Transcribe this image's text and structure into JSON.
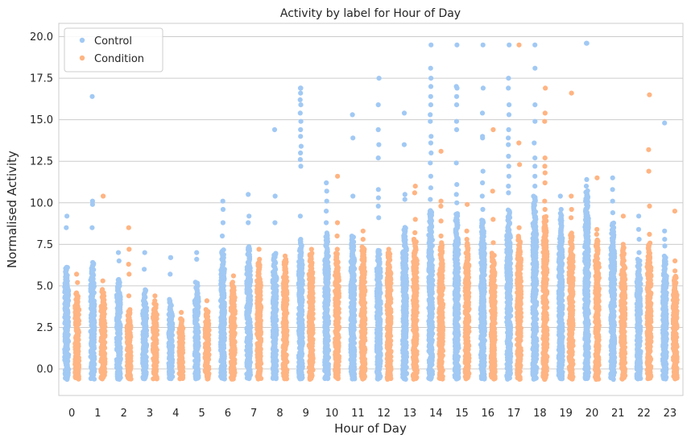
{
  "chart_data": {
    "type": "scatter",
    "subtype": "strip",
    "title": "Activity by label for Hour of Day",
    "xlabel": "Hour of Day",
    "ylabel": "Normalised Activity",
    "categories": [
      "0",
      "1",
      "2",
      "3",
      "4",
      "5",
      "6",
      "7",
      "8",
      "9",
      "10",
      "11",
      "12",
      "13",
      "14",
      "15",
      "16",
      "17",
      "18",
      "19",
      "20",
      "21",
      "22",
      "23"
    ],
    "ylim": [
      -1.6,
      20.8
    ],
    "yticks": [
      "0.0",
      "2.5",
      "5.0",
      "7.5",
      "10.0",
      "12.5",
      "15.0",
      "17.5",
      "20.0"
    ],
    "grid": "horizontal",
    "legend_position": "top-left",
    "series": [
      {
        "name": "Control",
        "color": "#a1c9f4",
        "dense_min": -0.6,
        "dense_max": [
          6.2,
          6.4,
          5.4,
          4.8,
          4.2,
          5.2,
          7.2,
          7.4,
          7.0,
          7.8,
          8.2,
          8.0,
          7.2,
          8.6,
          9.6,
          9.4,
          9.0,
          9.6,
          10.4,
          9.4,
          10.8,
          8.8,
          6.6,
          6.8
        ],
        "outliers": [
          [
            9.2,
            8.5
          ],
          [
            16.4,
            10.1,
            9.9,
            8.5
          ],
          [
            7.0,
            6.5
          ],
          [
            7.0,
            6.0
          ],
          [
            6.7,
            6.7,
            5.7
          ],
          [
            7.0,
            6.6
          ],
          [
            10.1,
            9.6,
            8.8,
            8.0
          ],
          [
            10.5,
            9.2,
            8.8
          ],
          [
            14.4,
            10.4,
            8.8
          ],
          [
            16.9,
            16.9,
            16.6,
            16.2,
            15.9,
            15.4,
            14.9,
            14.4,
            14.0,
            13.4,
            13.0,
            12.6,
            12.2,
            9.2
          ],
          [
            11.2,
            10.7,
            10.1,
            9.5,
            8.8
          ],
          [
            15.3,
            13.9,
            10.4
          ],
          [
            17.5,
            15.9,
            14.4,
            13.5,
            12.7,
            10.8,
            10.3,
            9.8,
            9.1
          ],
          [
            15.4,
            13.5,
            10.5,
            10.2
          ],
          [
            19.5,
            18.1,
            17.5,
            17.0,
            16.4,
            15.9,
            15.3,
            14.9,
            14.0,
            13.6,
            13.0,
            12.4,
            11.6,
            10.9,
            10.2
          ],
          [
            19.5,
            17.0,
            16.9,
            16.4,
            15.9,
            14.9,
            14.4,
            12.4,
            11.1,
            10.5,
            10.0
          ],
          [
            19.5,
            16.9,
            15.4,
            14.0,
            13.9,
            11.9,
            11.2,
            10.4,
            9.6
          ],
          [
            19.5,
            17.5,
            16.9,
            15.9,
            15.3,
            14.4,
            13.9,
            13.5,
            12.8,
            12.2,
            11.6,
            11.0,
            10.6
          ],
          [
            19.5,
            18.1,
            15.9,
            14.9,
            13.6,
            12.7,
            12.2,
            11.6,
            11.0
          ],
          [
            10.4,
            9.6
          ],
          [
            19.6,
            19.6,
            11.4,
            11.0
          ],
          [
            11.5,
            10.8,
            10.1,
            9.4
          ],
          [
            9.2,
            8.4,
            7.8,
            7.0
          ],
          [
            14.8,
            8.3,
            7.8,
            7.4
          ]
        ]
      },
      {
        "name": "Condition",
        "color": "#ffb482",
        "dense_min": -0.6,
        "dense_max": [
          4.6,
          4.8,
          3.6,
          4.0,
          3.0,
          3.6,
          5.2,
          6.4,
          6.6,
          7.0,
          7.0,
          7.4,
          7.0,
          7.8,
          7.6,
          7.6,
          7.0,
          8.0,
          9.2,
          8.2,
          7.8,
          7.4,
          7.6,
          5.6
        ],
        "outliers": [
          [
            5.7,
            5.2
          ],
          [
            10.4,
            5.3
          ],
          [
            8.5,
            7.2,
            6.3,
            5.7,
            4.4
          ],
          [
            4.4,
            4.1
          ],
          [
            3.4,
            3.0
          ],
          [
            4.1,
            3.5
          ],
          [
            5.6,
            4.7
          ],
          [
            7.2,
            6.6
          ],
          [
            6.8,
            6.4
          ],
          [
            7.2,
            6.8
          ],
          [
            11.6,
            8.8,
            8.0,
            7.2
          ],
          [
            8.3,
            7.8
          ],
          [
            7.2,
            7.0
          ],
          [
            11.0,
            10.6,
            9.0,
            8.2
          ],
          [
            13.1,
            10.1,
            9.8,
            8.9,
            8.0
          ],
          [
            9.9,
            8.3,
            7.8
          ],
          [
            14.4,
            10.7,
            9.0,
            7.6
          ],
          [
            19.5,
            13.6,
            12.3,
            8.5
          ],
          [
            16.9,
            15.4,
            14.9,
            12.7,
            12.2,
            11.8,
            11.2,
            10.1,
            9.6,
            9.0
          ],
          [
            16.6,
            10.4,
            9.6,
            9.1,
            8.0
          ],
          [
            11.5,
            8.4,
            8.1
          ],
          [
            9.2,
            7.5
          ],
          [
            16.5,
            13.2,
            11.9,
            9.8,
            8.1,
            7.4
          ],
          [
            9.5,
            6.5,
            5.9
          ]
        ]
      }
    ]
  }
}
